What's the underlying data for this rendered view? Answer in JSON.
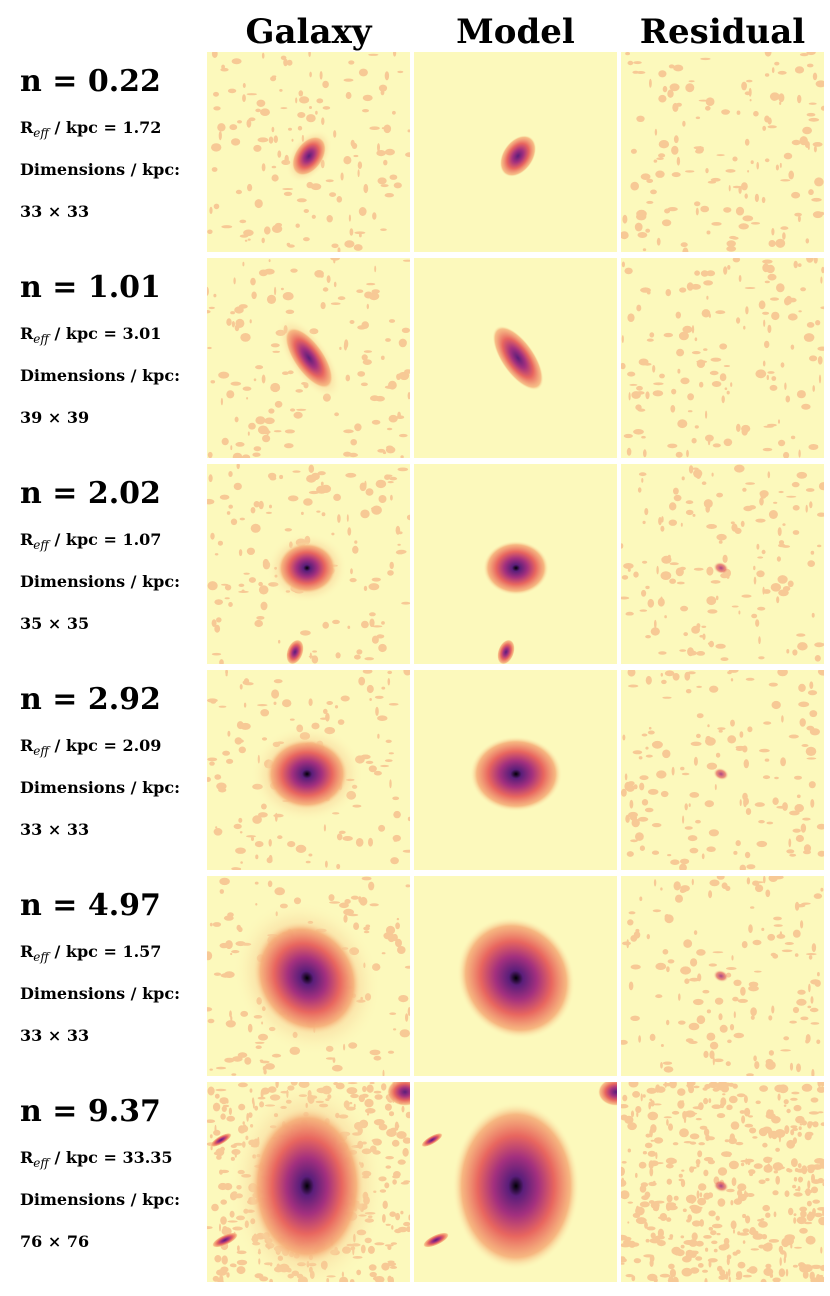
{
  "headers": {
    "galaxy": "Galaxy",
    "model": "Model",
    "residual": "Residual"
  },
  "rows": [
    {
      "n": "n = 0.22",
      "reff_prefix": "R",
      "reff_sub": "eff",
      "reff_value": " / kpc = 1.72",
      "dims_label": "Dimensions / kpc:",
      "dims_value": "33 × 33"
    },
    {
      "n": "n = 1.01",
      "reff_prefix": "R",
      "reff_sub": "eff",
      "reff_value": " / kpc = 3.01",
      "dims_label": "Dimensions / kpc:",
      "dims_value": "39 × 39"
    },
    {
      "n": "n = 2.02",
      "reff_prefix": "R",
      "reff_sub": "eff",
      "reff_value": " / kpc = 1.07",
      "dims_label": "Dimensions / kpc:",
      "dims_value": "35 × 35"
    },
    {
      "n": "n = 2.92",
      "reff_prefix": "R",
      "reff_sub": "eff",
      "reff_value": " / kpc = 2.09",
      "dims_label": "Dimensions / kpc:",
      "dims_value": "33 × 33"
    },
    {
      "n": "n = 4.97",
      "reff_prefix": "R",
      "reff_sub": "eff",
      "reff_value": " / kpc = 1.57",
      "dims_label": "Dimensions / kpc:",
      "dims_value": "33 × 33"
    },
    {
      "n": "n = 9.37",
      "reff_prefix": "R",
      "reff_sub": "eff",
      "reff_value": " / kpc = 33.35",
      "dims_label": "Dimensions / kpc:",
      "dims_value": "76 × 76"
    }
  ],
  "colors": {
    "background": "#fcf9bc",
    "noise": "#f4a277",
    "colormap": [
      "#fcf9bc",
      "#f6b07a",
      "#e8665f",
      "#a3307e",
      "#5a1e7a",
      "#000004"
    ]
  }
}
